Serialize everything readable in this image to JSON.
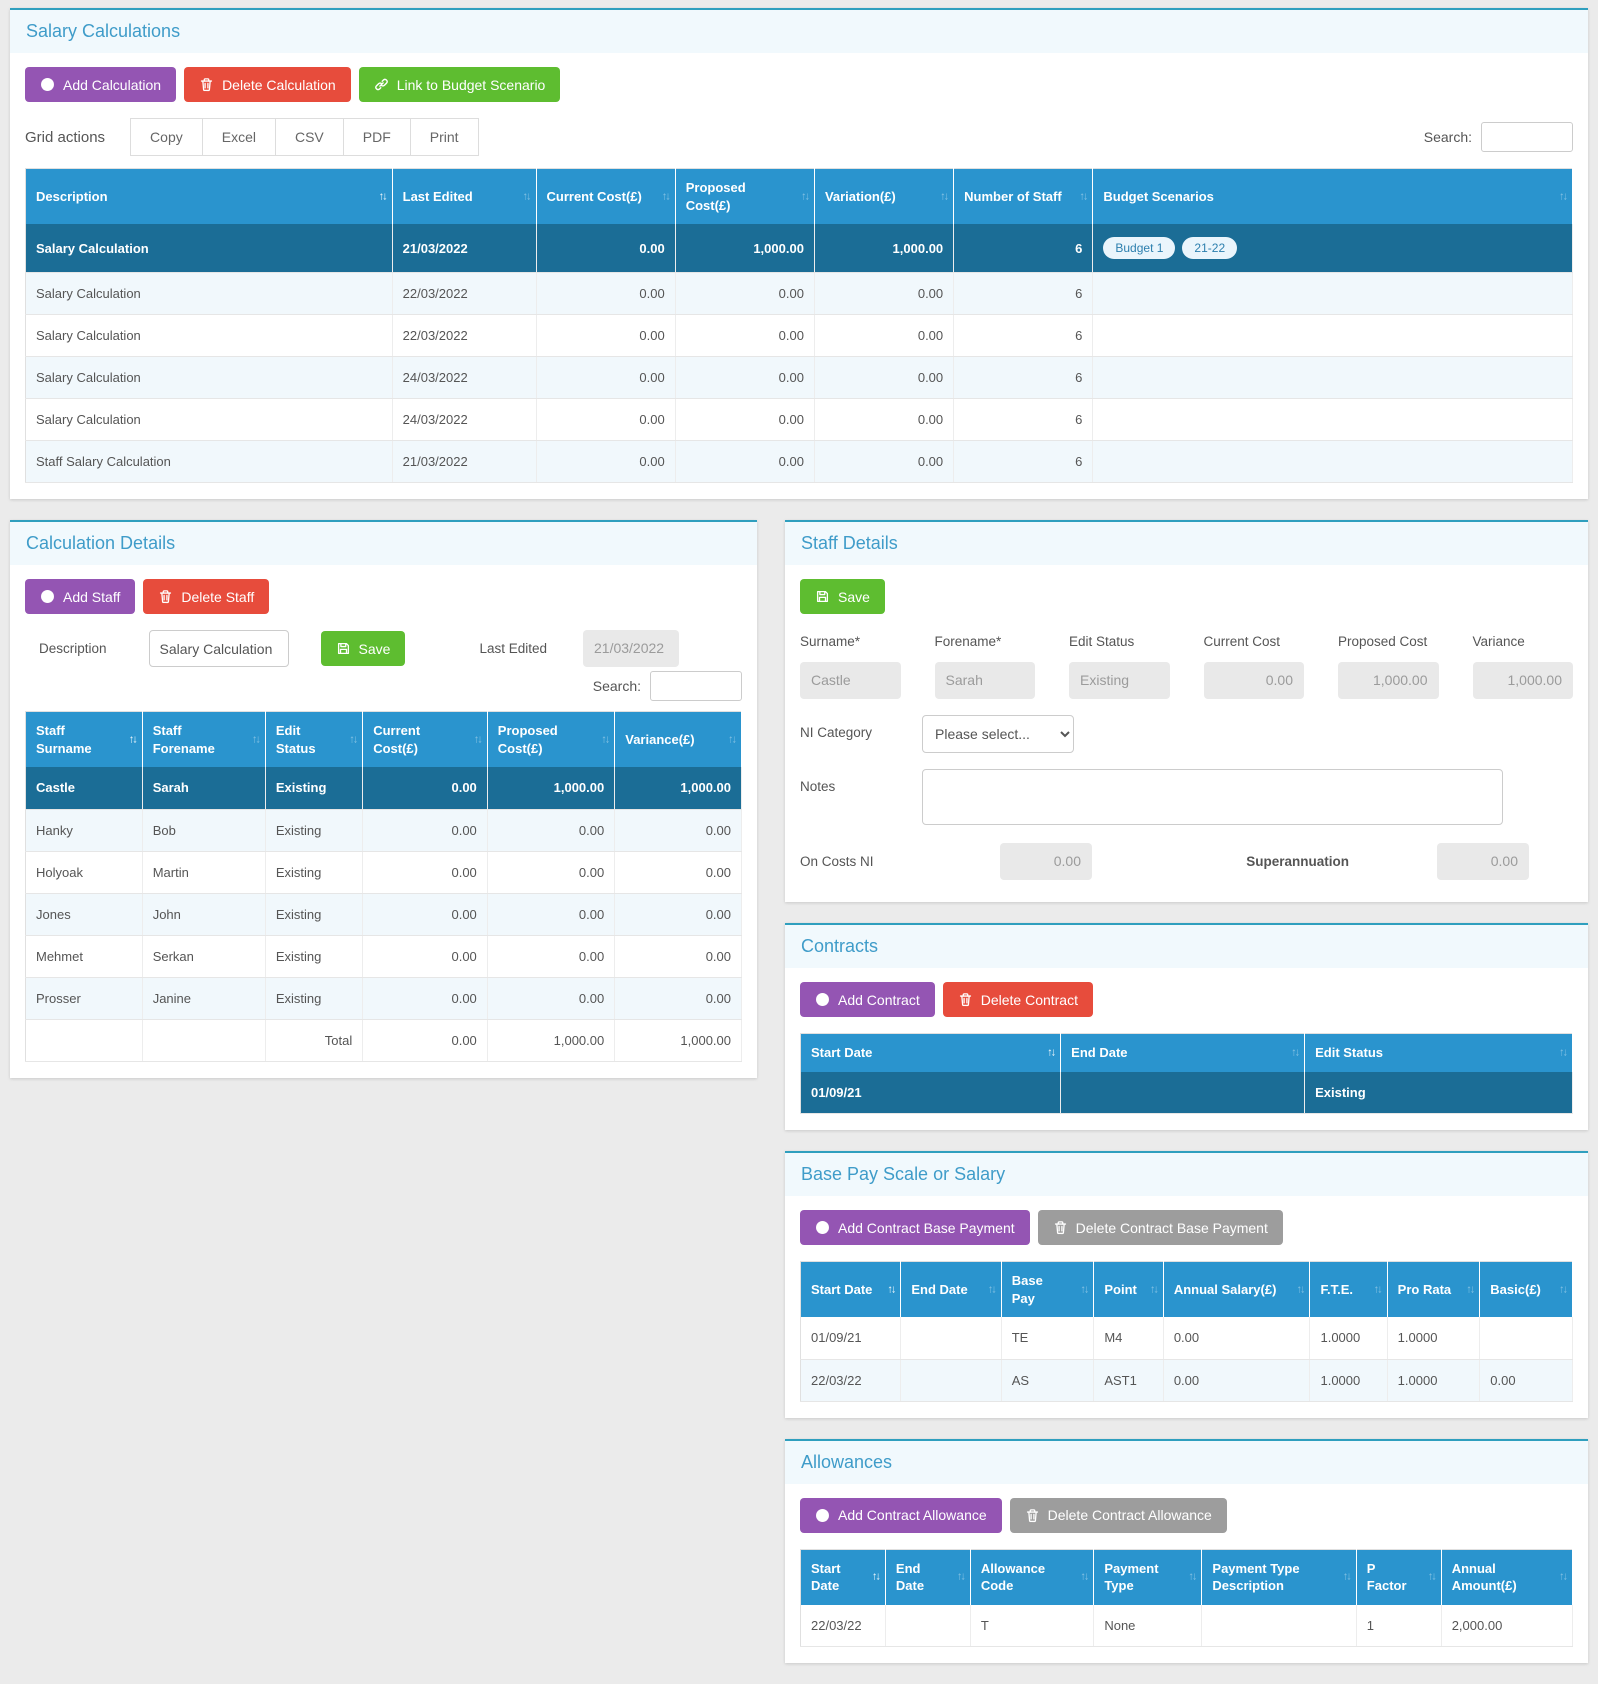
{
  "colors": {
    "accent_purple": "#9455b3",
    "accent_red": "#e74c3c",
    "accent_green": "#5ebd30",
    "accent_gray": "#9d9d9d",
    "table_header_blue": "#2a94ce",
    "selected_row_blue": "#1b6d96",
    "panel_top_border": "#2f9fbe",
    "panel_title_blue": "#3f9cc9",
    "page_background": "#ebebeb"
  },
  "icons": {
    "add_buttons": "plus-circle-icon",
    "delete_buttons": "trash-icon",
    "link_button": "link-icon",
    "save_buttons": "floppy-disk-icon",
    "column_sort": "sort-arrows-icon",
    "ni_category_caret": "chevron-down-icon"
  },
  "salary_calculations": {
    "title": "Salary Calculations",
    "add_button": "Add Calculation",
    "delete_button": "Delete Calculation",
    "link_button": "Link to Budget Scenario",
    "grid_actions_label": "Grid actions",
    "grid_actions": [
      "Copy",
      "Excel",
      "CSV",
      "PDF",
      "Print"
    ],
    "search_label": "Search:",
    "table": {
      "headers": [
        "Description",
        "Last Edited",
        "Current Cost(£)",
        "Proposed Cost(£)",
        "Variation(£)",
        "Number of Staff",
        "Budget Scenarios"
      ],
      "rows": [
        {
          "cells": [
            "Salary Calculation",
            "21/03/2022",
            "0.00",
            "1,000.00",
            "1,000.00",
            "6"
          ],
          "badges": [
            "Budget 1",
            "21-22"
          ],
          "selected": true
        },
        {
          "cells": [
            "Salary Calculation",
            "22/03/2022",
            "0.00",
            "0.00",
            "0.00",
            "6"
          ],
          "badges": []
        },
        {
          "cells": [
            "Salary Calculation",
            "22/03/2022",
            "0.00",
            "0.00",
            "0.00",
            "6"
          ],
          "badges": []
        },
        {
          "cells": [
            "Salary Calculation",
            "24/03/2022",
            "0.00",
            "0.00",
            "0.00",
            "6"
          ],
          "badges": []
        },
        {
          "cells": [
            "Salary Calculation",
            "24/03/2022",
            "0.00",
            "0.00",
            "0.00",
            "6"
          ],
          "badges": []
        },
        {
          "cells": [
            "Staff Salary Calculation",
            "21/03/2022",
            "0.00",
            "0.00",
            "0.00",
            "6"
          ],
          "badges": []
        }
      ]
    }
  },
  "calculation_details": {
    "title": "Calculation Details",
    "add_button": "Add Staff",
    "delete_button": "Delete Staff",
    "description_label": "Description",
    "description_value": "Salary Calculation",
    "save_button": "Save",
    "last_edited_label": "Last Edited",
    "last_edited_value": "21/03/2022",
    "search_label": "Search:",
    "table": {
      "headers": [
        "Staff Surname",
        "Staff Forename",
        "Edit Status",
        "Current Cost(£)",
        "Proposed Cost(£)",
        "Variance(£)"
      ],
      "rows": [
        {
          "cells": [
            "Castle",
            "Sarah",
            "Existing",
            "0.00",
            "1,000.00",
            "1,000.00"
          ],
          "selected": true
        },
        {
          "cells": [
            "Hanky",
            "Bob",
            "Existing",
            "0.00",
            "0.00",
            "0.00"
          ]
        },
        {
          "cells": [
            "Holyoak",
            "Martin",
            "Existing",
            "0.00",
            "0.00",
            "0.00"
          ]
        },
        {
          "cells": [
            "Jones",
            "John",
            "Existing",
            "0.00",
            "0.00",
            "0.00"
          ]
        },
        {
          "cells": [
            "Mehmet",
            "Serkan",
            "Existing",
            "0.00",
            "0.00",
            "0.00"
          ]
        },
        {
          "cells": [
            "Prosser",
            "Janine",
            "Existing",
            "0.00",
            "0.00",
            "0.00"
          ]
        }
      ],
      "total_row": [
        "",
        "",
        "Total",
        "0.00",
        "1,000.00",
        "1,000.00"
      ]
    }
  },
  "staff_details": {
    "title": "Staff Details",
    "save_button": "Save",
    "fields": [
      {
        "label": "Surname*",
        "value": "Castle"
      },
      {
        "label": "Forename*",
        "value": "Sarah"
      },
      {
        "label": "Edit Status",
        "value": "Existing"
      },
      {
        "label": "Current Cost",
        "value": "0.00"
      },
      {
        "label": "Proposed Cost",
        "value": "1,000.00"
      },
      {
        "label": "Variance",
        "value": "1,000.00"
      }
    ],
    "ni_category_label": "NI Category",
    "ni_category_value": "Please select...",
    "notes_label": "Notes",
    "on_costs_ni_label": "On Costs NI",
    "on_costs_ni_value": "0.00",
    "superannuation_label": "Superannuation",
    "superannuation_value": "0.00"
  },
  "contracts": {
    "title": "Contracts",
    "add_button": "Add Contract",
    "delete_button": "Delete Contract",
    "table": {
      "headers": [
        "Start Date",
        "End Date",
        "Edit Status"
      ],
      "rows": [
        {
          "cells": [
            "01/09/21",
            "",
            "Existing"
          ],
          "selected": true
        }
      ]
    }
  },
  "base_pay": {
    "title": "Base Pay Scale or Salary",
    "add_button": "Add Contract Base Payment",
    "delete_button": "Delete Contract Base Payment",
    "table": {
      "headers": [
        "Start Date",
        "End Date",
        "Base Pay",
        "Point",
        "Annual Salary(£)",
        "F.T.E.",
        "Pro Rata",
        "Basic(£)"
      ],
      "rows": [
        {
          "cells": [
            "01/09/21",
            "",
            "TE",
            "M4",
            "0.00",
            "1.0000",
            "1.0000",
            ""
          ]
        },
        {
          "cells": [
            "22/03/22",
            "",
            "AS",
            "AST1",
            "0.00",
            "1.0000",
            "1.0000",
            "0.00"
          ]
        }
      ]
    }
  },
  "allowances": {
    "title": "Allowances",
    "add_button": "Add Contract Allowance",
    "delete_button": "Delete Contract Allowance",
    "table": {
      "headers": [
        "Start Date",
        "End Date",
        "Allowance Code",
        "Payment Type",
        "Payment Type Description",
        "P Factor",
        "Annual Amount(£)"
      ],
      "rows": [
        {
          "cells": [
            "22/03/22",
            "",
            "T",
            "None",
            "",
            "1",
            "2,000.00"
          ]
        }
      ]
    }
  }
}
